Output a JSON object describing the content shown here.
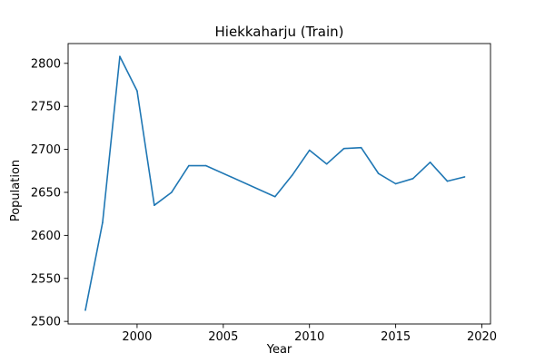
{
  "chart_data": {
    "type": "line",
    "title": "Hiekkaharju (Train)",
    "xlabel": "Year",
    "ylabel": "Population",
    "xlim": [
      1996.0,
      2020.5
    ],
    "ylim": [
      2497,
      2823
    ],
    "xticks": [
      2000,
      2005,
      2010,
      2015,
      2020
    ],
    "yticks": [
      2500,
      2550,
      2600,
      2650,
      2700,
      2750,
      2800
    ],
    "grid": false,
    "line_color": "#1f77b4",
    "series": [
      {
        "x": [
          1997,
          1998,
          1999,
          2000,
          2001,
          2002,
          2003,
          2004,
          2008,
          2009,
          2010,
          2011,
          2012,
          2013,
          2014,
          2015,
          2016,
          2017,
          2018,
          2019
        ],
        "y": [
          2513,
          2615,
          2808,
          2768,
          2635,
          2650,
          2681,
          2681,
          2645,
          2670,
          2699,
          2683,
          2701,
          2702,
          2672,
          2660,
          2666,
          2685,
          2663,
          2668
        ]
      }
    ]
  }
}
